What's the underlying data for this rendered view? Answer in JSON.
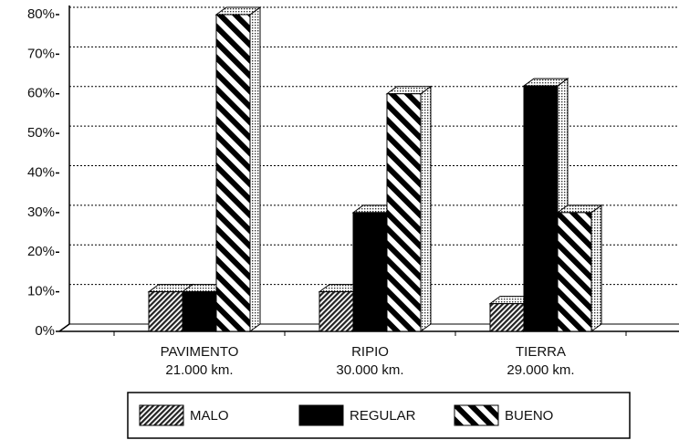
{
  "chart_data": {
    "type": "bar3d",
    "categories": [
      "PAVIMENTO",
      "RIPIO",
      "TIERRA"
    ],
    "category_sublabels": [
      "21.000 km.",
      "30.000 km.",
      "29.000 km."
    ],
    "series": [
      {
        "name": "MALO",
        "color": "hatch",
        "values": [
          10,
          10,
          7
        ]
      },
      {
        "name": "REGULAR",
        "color": "#000000",
        "values": [
          10,
          30,
          62
        ]
      },
      {
        "name": "BUENO",
        "color": "stripes",
        "values": [
          80,
          60,
          30
        ]
      }
    ],
    "ylim": [
      0,
      80
    ],
    "yticks": [
      {
        "value": 0,
        "label": "0%"
      },
      {
        "value": 10,
        "label": "10%"
      },
      {
        "value": 20,
        "label": "20%"
      },
      {
        "value": 30,
        "label": "30%"
      },
      {
        "value": 40,
        "label": "40%"
      },
      {
        "value": 50,
        "label": "50%"
      },
      {
        "value": 60,
        "label": "60%"
      },
      {
        "value": 70,
        "label": "70%"
      },
      {
        "value": 80,
        "label": "80%"
      }
    ],
    "grid": true,
    "legend": "bottom"
  }
}
